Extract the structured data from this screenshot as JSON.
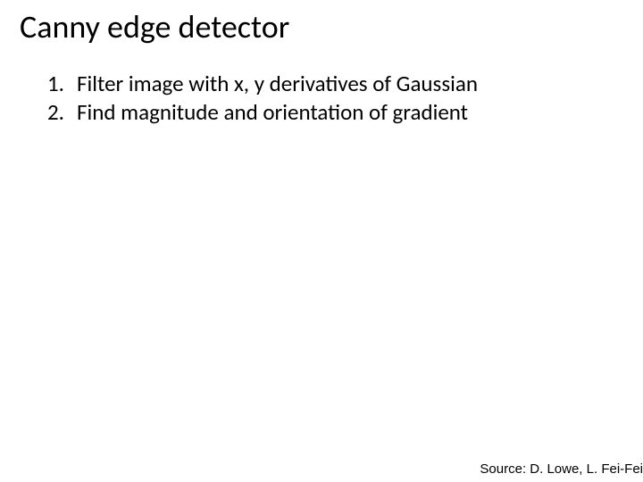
{
  "slide": {
    "title": "Canny edge detector",
    "title_fontsize": 36,
    "title_color": "#000000",
    "background_color": "#ffffff",
    "list": {
      "type": "ordered",
      "fontsize": 25,
      "color": "#000000",
      "items": [
        {
          "number": "1.",
          "text": "Filter image with x, y derivatives of Gaussian"
        },
        {
          "number": "2.",
          "text": "Find magnitude and orientation of gradient"
        }
      ]
    },
    "source_line": "Source: D. Lowe, L. Fei-Fei",
    "source_fontsize": 15,
    "source_color": "#000000"
  }
}
